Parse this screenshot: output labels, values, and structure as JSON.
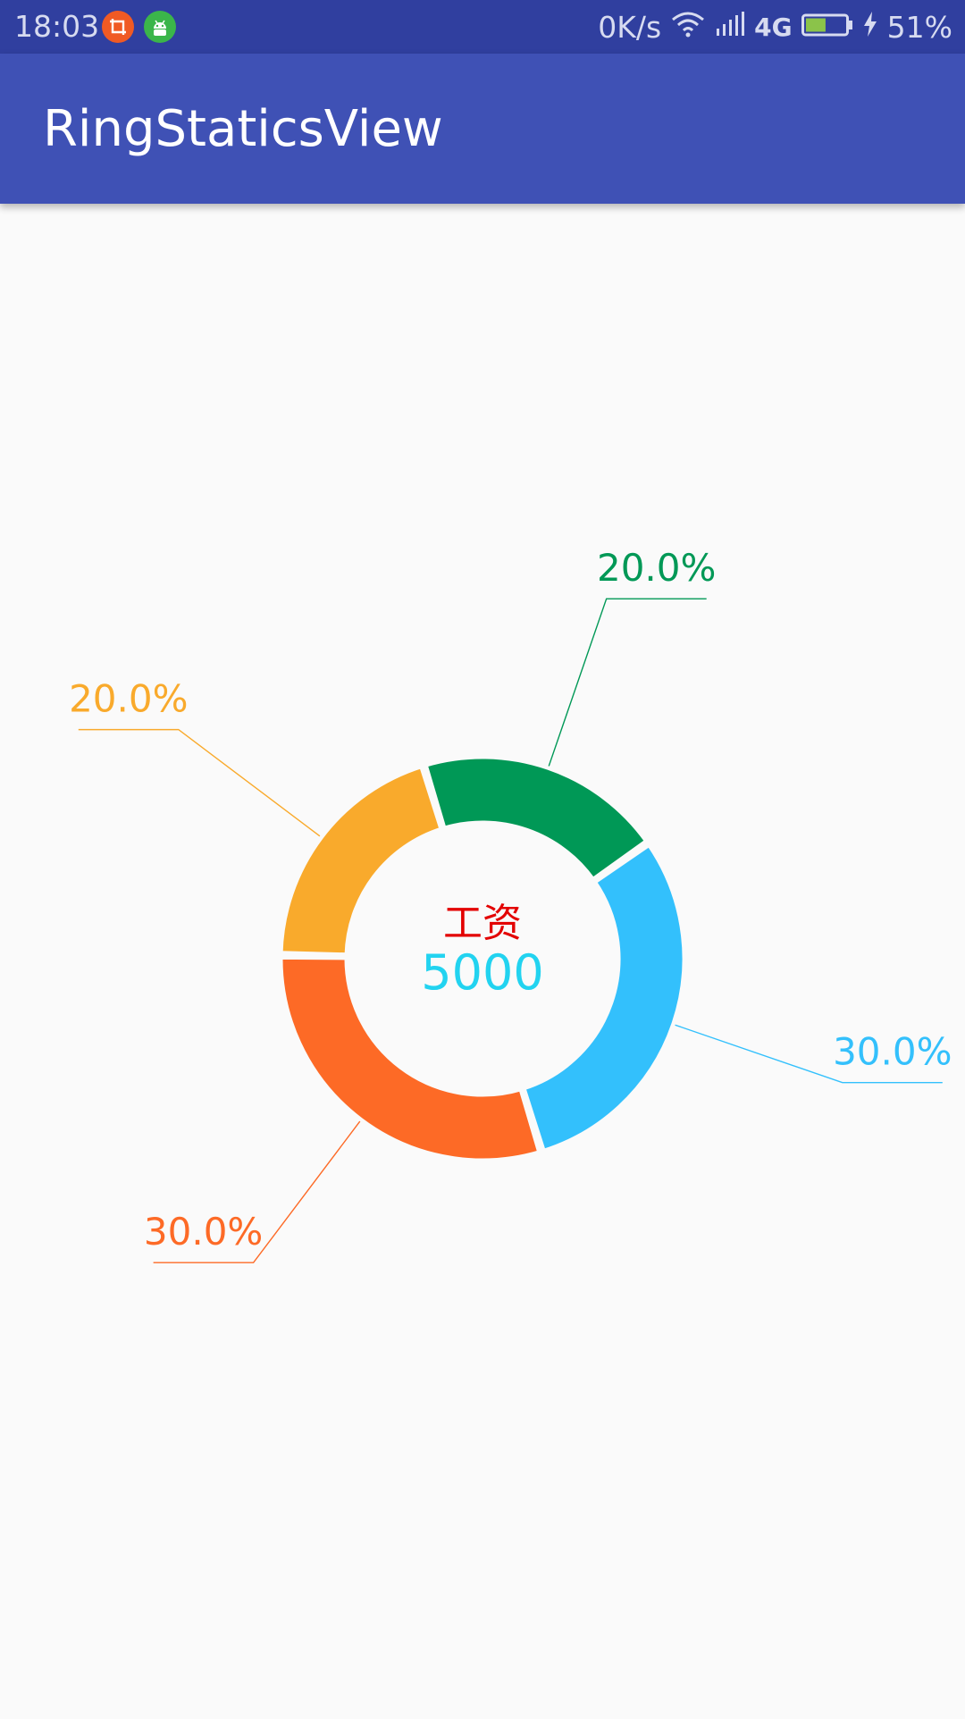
{
  "status_bar": {
    "time": "18:03",
    "network_speed": "0K/s",
    "network_type": "4G",
    "battery": "51%",
    "battery_level": 0.51,
    "icons": [
      "crop-notification-icon",
      "android-notification-icon",
      "wifi-icon",
      "signal-icon",
      "battery-icon",
      "charging-icon"
    ]
  },
  "app_bar": {
    "title": "RingStaticsView"
  },
  "chart_data": {
    "type": "pie",
    "style": "donut",
    "center_title": "工资",
    "center_value": "5000",
    "segments": [
      {
        "label": "20.0%",
        "value": 20.0,
        "color": "#009856"
      },
      {
        "label": "30.0%",
        "value": 30.0,
        "color": "#33c0fc"
      },
      {
        "label": "30.0%",
        "value": 30.0,
        "color": "#fd6a26"
      },
      {
        "label": "20.0%",
        "value": 20.0,
        "color": "#f9aa2c"
      }
    ]
  },
  "colors": {
    "status_bar": "#303f9f",
    "app_bar": "#3f51b5",
    "center_title": "#e30000",
    "center_value": "#22d3f0"
  }
}
